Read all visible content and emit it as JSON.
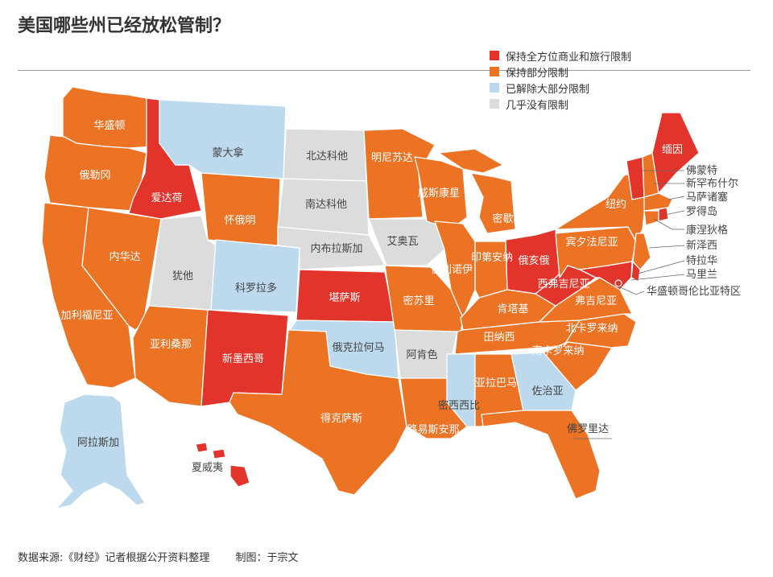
{
  "title": "美国哪些州已经放松管制？",
  "legend": [
    {
      "label": "保持全方位商业和旅行限制",
      "color": "#E2342A"
    },
    {
      "label": "保持部分限制",
      "color": "#EC7224"
    },
    {
      "label": "已解除大部分限制",
      "color": "#BCD9EE"
    },
    {
      "label": "几乎没有限制",
      "color": "#DCDCDC"
    }
  ],
  "states": [
    {
      "id": "WA",
      "name": "华盛顿",
      "status": "partial"
    },
    {
      "id": "OR",
      "name": "俄勒冈",
      "status": "partial"
    },
    {
      "id": "CA",
      "name": "加利福尼亚",
      "status": "partial"
    },
    {
      "id": "NV",
      "name": "内华达",
      "status": "partial"
    },
    {
      "id": "ID",
      "name": "爱达荷",
      "status": "full"
    },
    {
      "id": "MT",
      "name": "蒙大拿",
      "status": "lifted"
    },
    {
      "id": "WY",
      "name": "怀俄明",
      "status": "partial"
    },
    {
      "id": "UT",
      "name": "犹他",
      "status": "none"
    },
    {
      "id": "CO",
      "name": "科罗拉多",
      "status": "lifted"
    },
    {
      "id": "AZ",
      "name": "亚利桑那",
      "status": "partial"
    },
    {
      "id": "NM",
      "name": "新墨西哥",
      "status": "full"
    },
    {
      "id": "ND",
      "name": "北达科他",
      "status": "none"
    },
    {
      "id": "SD",
      "name": "南达科他",
      "status": "none"
    },
    {
      "id": "NE",
      "name": "内布拉斯加",
      "status": "none"
    },
    {
      "id": "KS",
      "name": "堪萨斯",
      "status": "full"
    },
    {
      "id": "OK",
      "name": "俄克拉何马",
      "status": "lifted"
    },
    {
      "id": "TX",
      "name": "得克萨斯",
      "status": "partial"
    },
    {
      "id": "MN",
      "name": "明尼苏达",
      "status": "partial"
    },
    {
      "id": "IA",
      "name": "艾奥瓦",
      "status": "none"
    },
    {
      "id": "MO",
      "name": "密苏里",
      "status": "partial"
    },
    {
      "id": "AR",
      "name": "阿肯色",
      "status": "none"
    },
    {
      "id": "LA",
      "name": "路易斯安那",
      "status": "partial"
    },
    {
      "id": "WI",
      "name": "威斯康星",
      "status": "partial"
    },
    {
      "id": "IL",
      "name": "伊利诺伊",
      "status": "partial"
    },
    {
      "id": "MI",
      "name": "密歇根",
      "status": "partial"
    },
    {
      "id": "IN",
      "name": "印第安纳",
      "status": "partial"
    },
    {
      "id": "OH",
      "name": "俄亥俄",
      "status": "full"
    },
    {
      "id": "KY",
      "name": "肯塔基",
      "status": "partial"
    },
    {
      "id": "TN",
      "name": "田纳西",
      "status": "partial"
    },
    {
      "id": "MS",
      "name": "密西西比",
      "status": "lifted"
    },
    {
      "id": "AL",
      "name": "亚拉巴马",
      "status": "partial"
    },
    {
      "id": "GA",
      "name": "佐治亚",
      "status": "lifted"
    },
    {
      "id": "FL",
      "name": "佛罗里达",
      "status": "partial"
    },
    {
      "id": "SC",
      "name": "南卡罗来纳",
      "status": "partial"
    },
    {
      "id": "NC",
      "name": "北卡罗来纳",
      "status": "partial"
    },
    {
      "id": "VA",
      "name": "弗吉尼亚",
      "status": "partial"
    },
    {
      "id": "WV",
      "name": "西弗吉尼亚",
      "status": "full"
    },
    {
      "id": "PA",
      "name": "宾夕法尼亚",
      "status": "partial"
    },
    {
      "id": "NY",
      "name": "纽约",
      "status": "partial"
    },
    {
      "id": "ME",
      "name": "缅因",
      "status": "full"
    },
    {
      "id": "VT",
      "name": "佛蒙特",
      "status": "full"
    },
    {
      "id": "NH",
      "name": "新罕布什尔",
      "status": "partial"
    },
    {
      "id": "MA",
      "name": "马萨诸塞",
      "status": "partial"
    },
    {
      "id": "RI",
      "name": "罗得岛",
      "status": "full"
    },
    {
      "id": "CT",
      "name": "康涅狄格",
      "status": "partial"
    },
    {
      "id": "NJ",
      "name": "新泽西",
      "status": "partial"
    },
    {
      "id": "DE",
      "name": "特拉华",
      "status": "full"
    },
    {
      "id": "MD",
      "name": "马里兰",
      "status": "full"
    },
    {
      "id": "DC",
      "name": "华盛顿哥伦比亚特区",
      "status": "full"
    },
    {
      "id": "AK",
      "name": "阿拉斯加",
      "status": "lifted"
    },
    {
      "id": "HI",
      "name": "夏威夷",
      "status": "full"
    }
  ],
  "footer": {
    "source": "数据来源:《财经》记者根据公开资料整理",
    "credit": "制图：于宗文"
  }
}
